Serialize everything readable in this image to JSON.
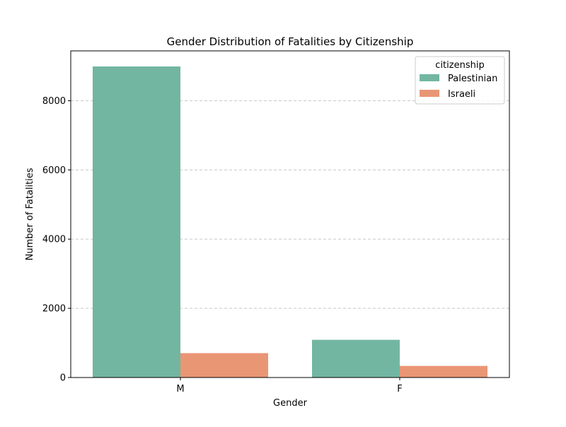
{
  "chart_data": {
    "type": "bar",
    "title": "Gender Distribution of Fatalities by Citizenship",
    "xlabel": "Gender",
    "ylabel": "Number of Fatalities",
    "categories": [
      "M",
      "F"
    ],
    "series": [
      {
        "name": "Palestinian",
        "color": "#72b6a1",
        "values": [
          8990,
          1090
        ]
      },
      {
        "name": "Israeli",
        "color": "#e99675",
        "values": [
          705,
          335
        ]
      }
    ],
    "ylim": [
      0,
      9440
    ],
    "yticks": [
      0,
      2000,
      4000,
      6000,
      8000
    ],
    "grid": {
      "axis": "y",
      "style": "dashed",
      "color": "#c8c8c8"
    },
    "legend": {
      "title": "citizenship",
      "placement": "top-right"
    }
  }
}
